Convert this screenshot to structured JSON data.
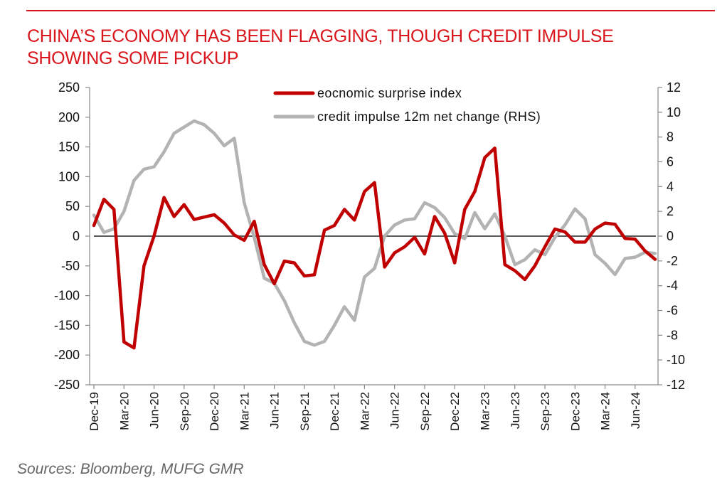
{
  "header": {
    "title_line1": "CHINA’S ECONOMY HAS BEEN FLAGGING, THOUGH CREDIT IMPULSE",
    "title_line2": "SHOWING SOME PICKUP"
  },
  "footer": {
    "source": "Sources:  Bloomberg, MUFG GMR"
  },
  "colors": {
    "accent": "#d9141b",
    "series1": "#c00000",
    "series2": "#b3b3b3",
    "zero_line": "#595959"
  },
  "chart_data": {
    "type": "line",
    "title": "CHINA’S ECONOMY HAS BEEN FLAGGING, THOUGH CREDIT IMPULSE SHOWING SOME PICKUP",
    "x": [
      "Dec-19",
      "Jan-20",
      "Feb-20",
      "Mar-20",
      "Apr-20",
      "May-20",
      "Jun-20",
      "Jul-20",
      "Aug-20",
      "Sep-20",
      "Oct-20",
      "Nov-20",
      "Dec-20",
      "Jan-21",
      "Feb-21",
      "Mar-21",
      "Apr-21",
      "May-21",
      "Jun-21",
      "Jul-21",
      "Aug-21",
      "Sep-21",
      "Oct-21",
      "Nov-21",
      "Dec-21",
      "Jan-22",
      "Feb-22",
      "Mar-22",
      "Apr-22",
      "May-22",
      "Jun-22",
      "Jul-22",
      "Aug-22",
      "Sep-22",
      "Oct-22",
      "Nov-22",
      "Dec-22",
      "Jan-23",
      "Feb-23",
      "Mar-23",
      "Apr-23",
      "May-23",
      "Jun-23",
      "Jul-23",
      "Aug-23",
      "Sep-23",
      "Oct-23",
      "Nov-23",
      "Dec-23",
      "Jan-24",
      "Feb-24",
      "Mar-24",
      "Apr-24",
      "May-24",
      "Jun-24",
      "Jul-24",
      "Aug-24"
    ],
    "x_tick_labels": [
      "Dec-19",
      "Mar-20",
      "Jun-20",
      "Sep-20",
      "Dec-20",
      "Mar-21",
      "Jun-21",
      "Sep-21",
      "Dec-21",
      "Mar-22",
      "Jun-22",
      "Sep-22",
      "Dec-22",
      "Mar-23",
      "Jun-23",
      "Sep-23",
      "Dec-23",
      "Mar-24",
      "Jun-24"
    ],
    "y_left": {
      "lim": [
        -250,
        250
      ],
      "ticks": [
        250,
        200,
        150,
        100,
        50,
        0,
        -50,
        -100,
        -150,
        -200,
        -250
      ]
    },
    "y_right": {
      "lim": [
        -12,
        12
      ],
      "ticks": [
        12,
        10,
        8,
        6,
        4,
        2,
        0,
        -2,
        -4,
        -6,
        -8,
        -10,
        -12
      ]
    },
    "legend_position": "top-center",
    "grid": false,
    "series": [
      {
        "name": "eocnomic surprise index",
        "axis": "left",
        "values": [
          18,
          62,
          45,
          -178,
          -188,
          -50,
          0,
          65,
          33,
          53,
          28,
          32,
          36,
          22,
          2,
          -7,
          25,
          -48,
          -80,
          -42,
          -45,
          -67,
          -65,
          10,
          18,
          45,
          27,
          75,
          90,
          -52,
          -28,
          -18,
          -2,
          -30,
          33,
          5,
          -45,
          45,
          75,
          132,
          148,
          -48,
          -58,
          -73,
          -50,
          -18,
          12,
          7,
          -10,
          -10,
          12,
          22,
          20,
          -4,
          -5,
          -25,
          -39
        ]
      },
      {
        "name": "credit impulse 12m  net change (RHS)",
        "axis": "right",
        "values": [
          1.7,
          0.3,
          0.6,
          2.0,
          4.5,
          5.4,
          5.6,
          6.8,
          8.3,
          8.8,
          9.3,
          9.0,
          8.3,
          7.3,
          7.9,
          2.7,
          -0.1,
          -3.4,
          -3.8,
          -5.2,
          -7.0,
          -8.5,
          -8.8,
          -8.5,
          -7.2,
          -5.7,
          -6.8,
          -3.3,
          -2.6,
          0.0,
          0.9,
          1.3,
          1.4,
          2.7,
          2.3,
          1.5,
          0.2,
          -0.2,
          1.9,
          0.6,
          1.8,
          0.0,
          -2.3,
          -1.9,
          -1.1,
          -1.5,
          -0.1,
          0.9,
          2.2,
          1.4,
          -1.5,
          -2.2,
          -3.1,
          -1.8,
          -1.7,
          -1.3,
          -1.4
        ]
      }
    ]
  }
}
